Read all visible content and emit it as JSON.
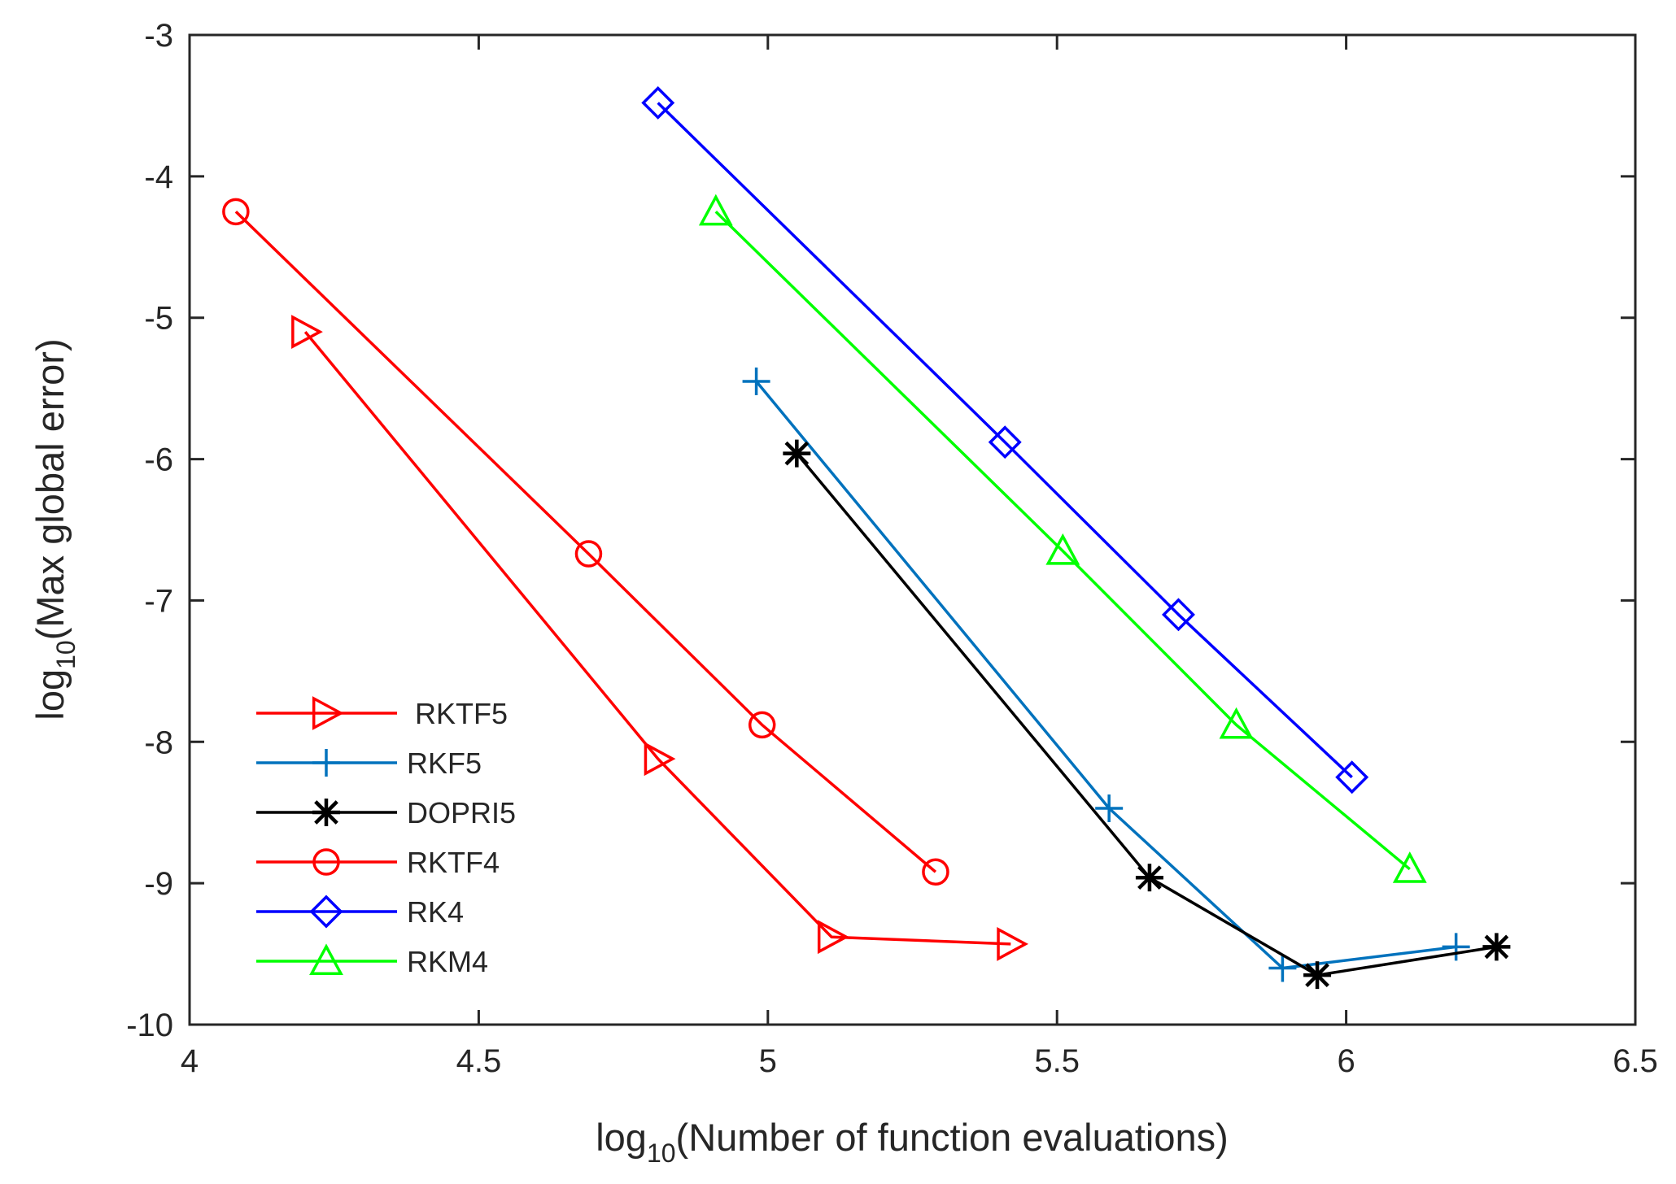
{
  "chart_data": {
    "type": "line",
    "title": "",
    "xlabel": {
      "prefix": "log",
      "subscript": "10",
      "rest": "(Number of function evaluations)"
    },
    "ylabel": {
      "prefix": "log",
      "subscript": "10",
      "rest": "(Max global error)"
    },
    "xlim": [
      4,
      6.5
    ],
    "ylim": [
      -10,
      -3
    ],
    "xticks": [
      4,
      4.5,
      5,
      5.5,
      6,
      6.5
    ],
    "xtick_labels": [
      "4",
      "4.5",
      "5",
      "5.5",
      "6",
      "6.5"
    ],
    "yticks": [
      -3,
      -4,
      -5,
      -6,
      -7,
      -8,
      -9,
      -10
    ],
    "ytick_labels": [
      "-3",
      "-4",
      "-5",
      "-6",
      "-7",
      "-8",
      "-9",
      "-10"
    ],
    "grid": false,
    "legend_position": "bottom-left",
    "series": [
      {
        "name": " RKTF5",
        "color": "#ff0000",
        "marker": "triangle-right",
        "x": [
          4.2,
          4.81,
          5.11,
          5.42
        ],
        "y": [
          -5.1,
          -8.12,
          -9.38,
          -9.43
        ]
      },
      {
        "name": "RKF5",
        "color": "#0072bd",
        "marker": "plus",
        "x": [
          4.98,
          5.59,
          5.89,
          6.19
        ],
        "y": [
          -5.45,
          -8.47,
          -9.6,
          -9.45
        ]
      },
      {
        "name": "DOPRI5",
        "color": "#000000",
        "marker": "asterisk",
        "x": [
          5.05,
          5.66,
          5.95,
          6.26
        ],
        "y": [
          -5.96,
          -8.96,
          -9.65,
          -9.45
        ]
      },
      {
        "name": "RKTF4",
        "color": "#ff0000",
        "marker": "circle",
        "x": [
          4.08,
          4.69,
          4.99,
          5.29
        ],
        "y": [
          -4.25,
          -6.67,
          -7.88,
          -8.92
        ]
      },
      {
        "name": "RK4",
        "color": "#0000ff",
        "marker": "diamond",
        "x": [
          4.81,
          5.41,
          5.71,
          6.01
        ],
        "y": [
          -3.48,
          -5.88,
          -7.1,
          -8.25
        ]
      },
      {
        "name": "RKM4",
        "color": "#00ff00",
        "marker": "triangle-up",
        "x": [
          4.91,
          5.51,
          5.81,
          6.11
        ],
        "y": [
          -4.25,
          -6.65,
          -7.88,
          -8.9
        ]
      }
    ]
  }
}
